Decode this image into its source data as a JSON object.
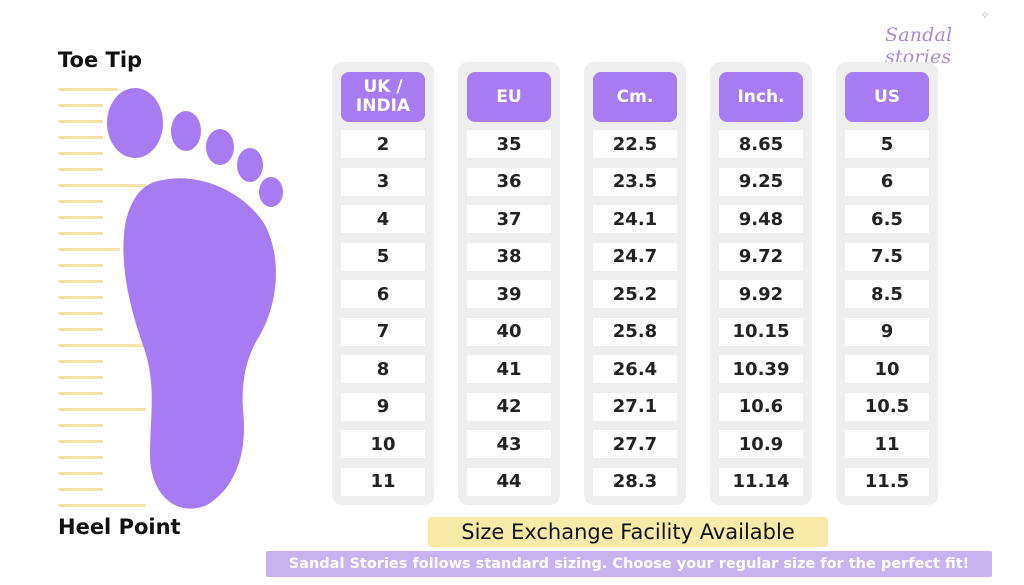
{
  "brand": {
    "name": "Sandal stories"
  },
  "labels": {
    "toe_tip": "Toe Tip",
    "heel_point": "Heel Point"
  },
  "colors": {
    "accent": "#a77cf2",
    "ruler": "#f3e3a8",
    "highlight": "#faeaaa",
    "banner": "#c8b2ef"
  },
  "icons": {
    "foot": "foot-outline-icon"
  },
  "size_table": {
    "columns": [
      {
        "header": "UK /\nINDIA",
        "values": [
          "2",
          "3",
          "4",
          "5",
          "6",
          "7",
          "8",
          "9",
          "10",
          "11"
        ]
      },
      {
        "header": "EU",
        "values": [
          "35",
          "36",
          "37",
          "38",
          "39",
          "40",
          "41",
          "42",
          "43",
          "44"
        ]
      },
      {
        "header": "Cm.",
        "values": [
          "22.5",
          "23.5",
          "24.1",
          "24.7",
          "25.2",
          "25.8",
          "26.4",
          "27.1",
          "27.7",
          "28.3"
        ]
      },
      {
        "header": "Inch.",
        "values": [
          "8.65",
          "9.25",
          "9.48",
          "9.72",
          "9.92",
          "10.15",
          "10.39",
          "10.6",
          "10.9",
          "11.14"
        ]
      },
      {
        "header": "US",
        "values": [
          "5",
          "6",
          "6.5",
          "7.5",
          "8.5",
          "9",
          "10",
          "10.5",
          "11",
          "11.5"
        ]
      }
    ]
  },
  "footer": {
    "exchange": "Size Exchange Facility Available",
    "note": "Sandal Stories follows standard sizing. Choose your regular size for the perfect fit!"
  }
}
